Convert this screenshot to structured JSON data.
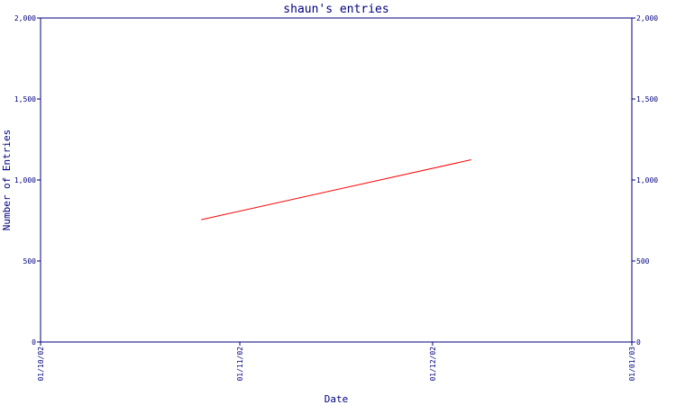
{
  "chart_data": {
    "type": "line",
    "title": "shaun's entries",
    "xlabel": "Date",
    "ylabel": "Number of Entries",
    "x_ticks": [
      "01/10/02",
      "01/11/02",
      "01/12/02",
      "01/01/03"
    ],
    "y_ticks": [
      "0",
      "500",
      "1,000",
      "1,500",
      "2,000"
    ],
    "ylim": [
      0,
      2000
    ],
    "xlim": [
      "2002-10-01",
      "2003-01-01"
    ],
    "series": [
      {
        "color": "#ff0000",
        "points": [
          {
            "x": "2002-10-26",
            "y": 755
          },
          {
            "x": "2002-12-07",
            "y": 1125
          }
        ]
      }
    ],
    "frame_color": "#000080",
    "grid": false,
    "right_axis_mirrors_left": true
  }
}
